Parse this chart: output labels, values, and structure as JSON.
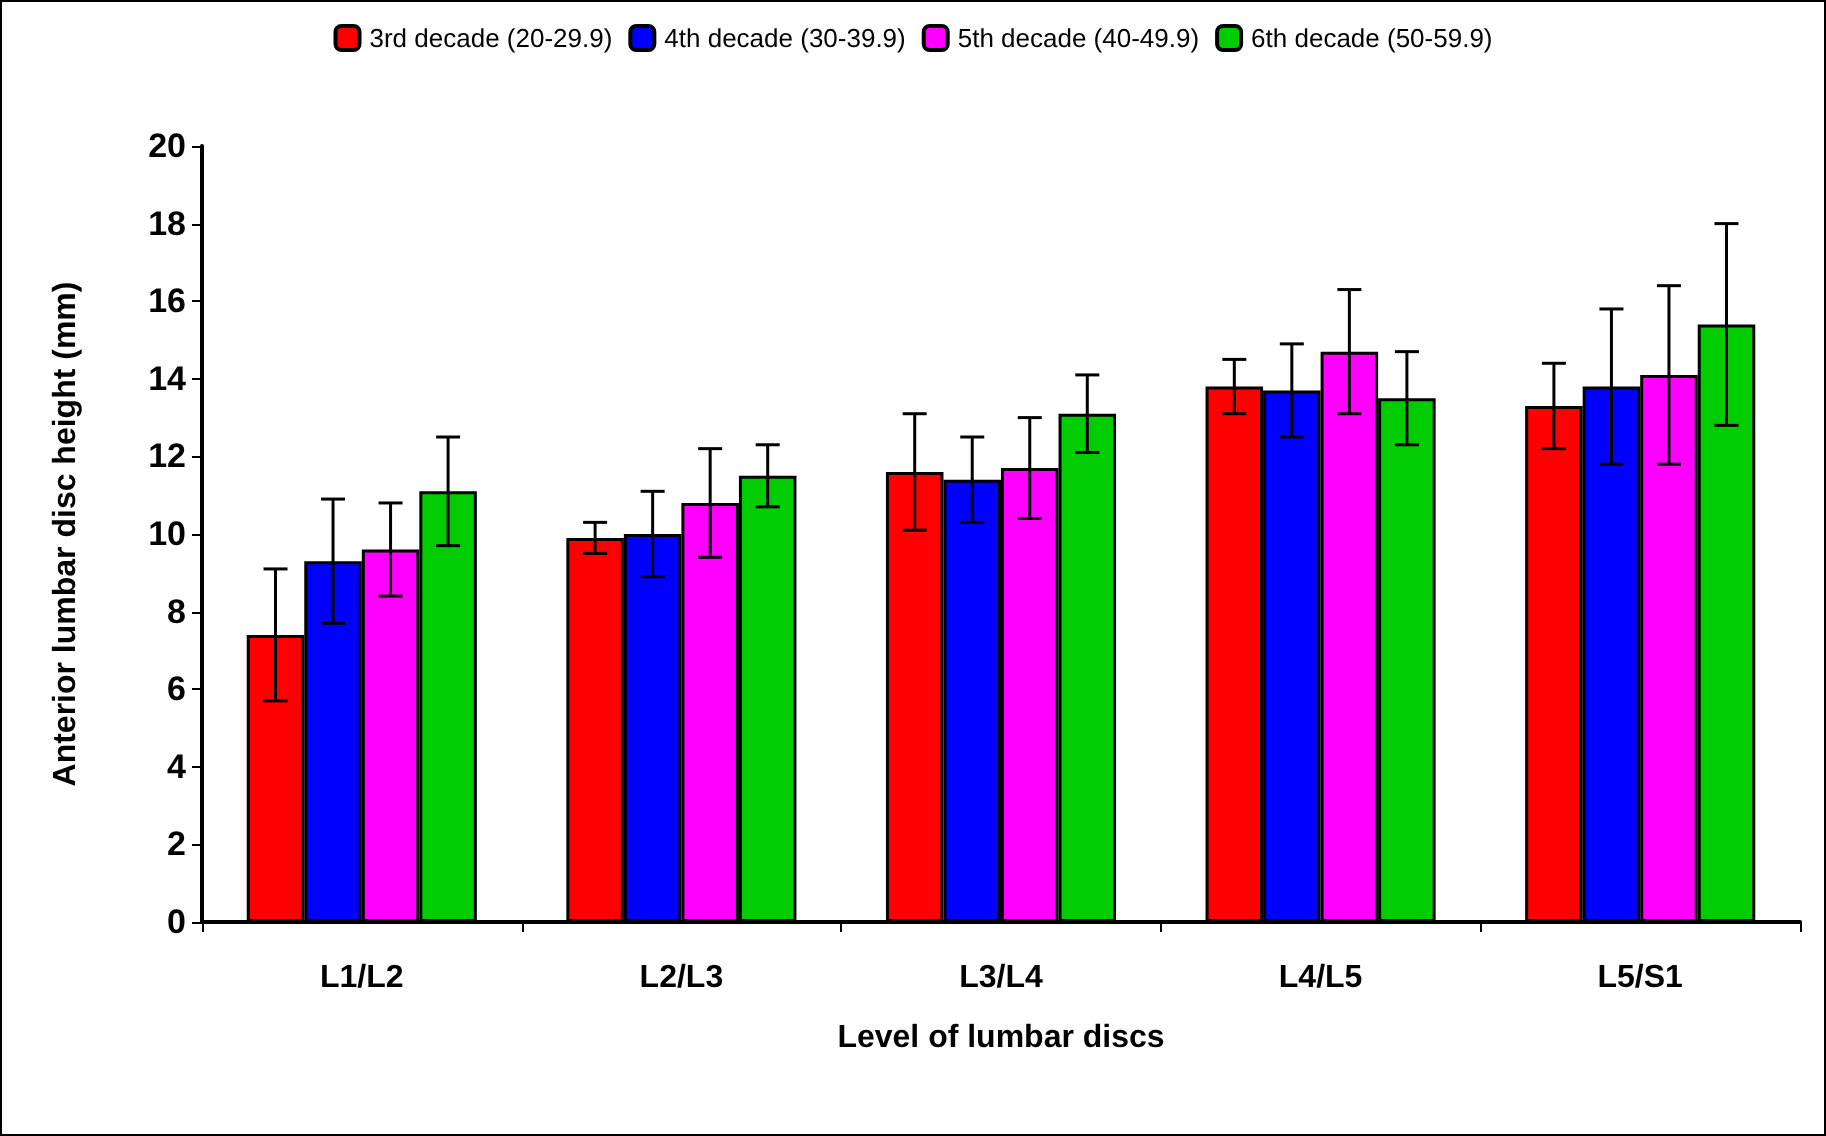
{
  "chart_data": {
    "type": "bar",
    "xlabel": "Level of lumbar discs",
    "ylabel": "Anterior lumbar disc height (mm)",
    "categories": [
      "L1/L2",
      "L2/L3",
      "L3/L4",
      "L4/L5",
      "L5/S1"
    ],
    "series": [
      {
        "name": "3rd decade (20-29.9)",
        "color": "#ff0000",
        "values": [
          7.4,
          9.9,
          11.6,
          13.8,
          13.3
        ],
        "errors": [
          1.7,
          0.4,
          1.5,
          0.7,
          1.1
        ]
      },
      {
        "name": "4th decade (30-39.9)",
        "color": "#0000ff",
        "values": [
          9.3,
          10.0,
          11.4,
          13.7,
          13.8
        ],
        "errors": [
          1.6,
          1.1,
          1.1,
          1.2,
          2.0
        ]
      },
      {
        "name": "5th decade (40-49.9)",
        "color": "#ff00ff",
        "values": [
          9.6,
          10.8,
          11.7,
          14.7,
          14.1
        ],
        "errors": [
          1.2,
          1.4,
          1.3,
          1.6,
          2.3
        ]
      },
      {
        "name": "6th decade (50-59.9)",
        "color": "#00cc00",
        "values": [
          11.1,
          11.5,
          13.1,
          13.5,
          15.4
        ],
        "errors": [
          1.4,
          0.8,
          1.0,
          1.2,
          2.6
        ]
      }
    ],
    "ylim": [
      0,
      20
    ],
    "yticks": [
      0,
      2,
      4,
      6,
      8,
      10,
      12,
      14,
      16,
      18,
      20
    ],
    "grid": false,
    "legend": "top"
  }
}
